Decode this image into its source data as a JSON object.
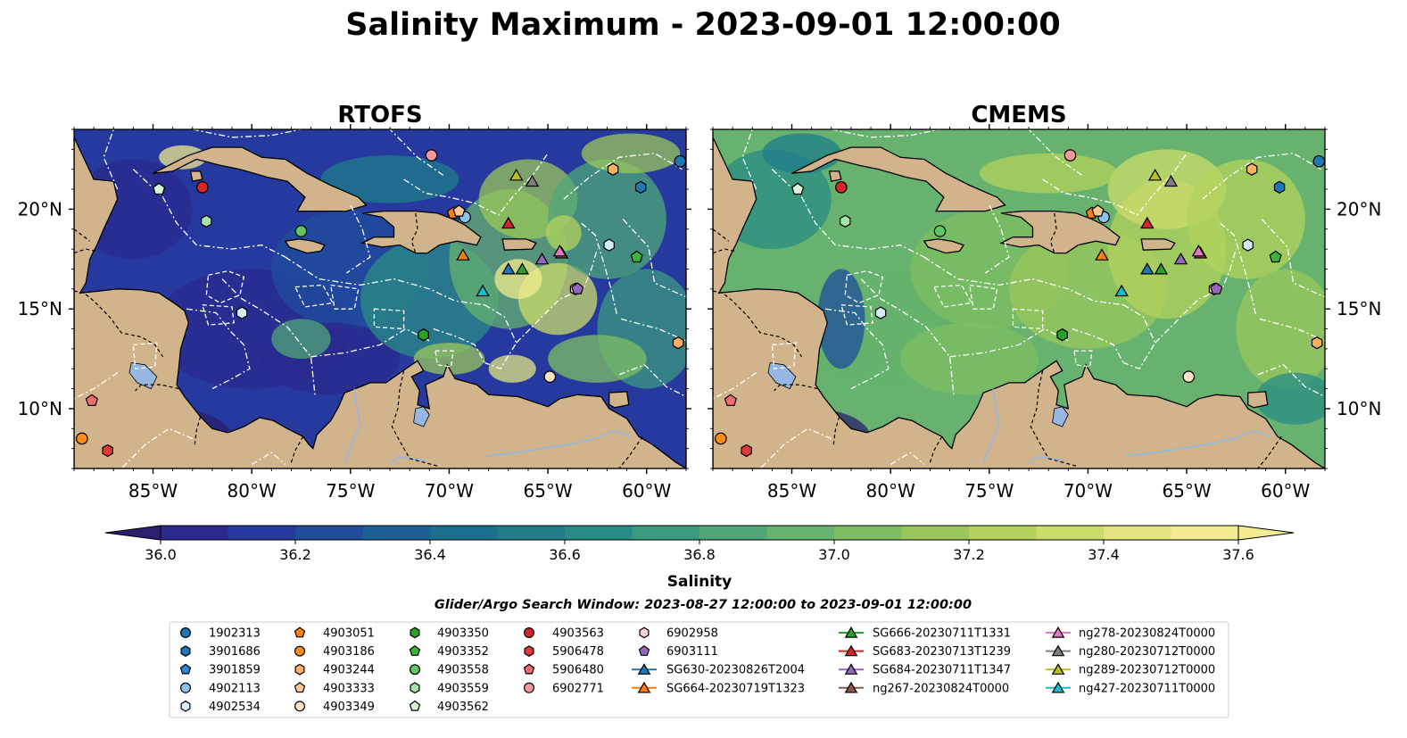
{
  "title": "Salinity Maximum - 2023-09-01 12:00:00",
  "panels": [
    {
      "name": "RTOFS",
      "variant": "rtofs"
    },
    {
      "name": "CMEMS",
      "variant": "cmems"
    }
  ],
  "axes": {
    "lon_range": [
      -89,
      -58
    ],
    "lat_range": [
      7,
      24
    ],
    "x_ticks": [
      "85°W",
      "80°W",
      "75°W",
      "70°W",
      "65°W",
      "60°W"
    ],
    "x_tick_values": [
      -85,
      -80,
      -75,
      -70,
      -65,
      -60
    ],
    "y_ticks": [
      "10°N",
      "15°N",
      "20°N"
    ],
    "y_tick_values": [
      10,
      15,
      20
    ]
  },
  "colorbar": {
    "label": "Salinity",
    "min": 36.0,
    "max": 37.6,
    "step": 0.1,
    "ticks": [
      "36.0",
      "36.2",
      "36.4",
      "36.6",
      "36.8",
      "37.0",
      "37.2",
      "37.4",
      "37.6"
    ],
    "colormap": "summer-ocean",
    "extend": "both"
  },
  "search_window": "Glider/Argo Search Window: 2023-08-27 12:00:00 to 2023-09-01 12:00:00",
  "colors": {
    "land": "#d2b48c",
    "lakes": "#97b6e1",
    "eez_lines": "#ffffff",
    "border_lines": "#000000"
  },
  "legend": [
    {
      "label": "1902313",
      "marker": "circle",
      "color": "#1f77b4"
    },
    {
      "label": "3901686",
      "marker": "hexagon",
      "color": "#1f77b4"
    },
    {
      "label": "3901859",
      "marker": "pentagon",
      "color": "#2e86d6"
    },
    {
      "label": "4902113",
      "marker": "circle",
      "color": "#8ec0ee"
    },
    {
      "label": "4902534",
      "marker": "hexagon",
      "color": "#d6ecfb"
    },
    {
      "label": "4903051",
      "marker": "pentagon",
      "color": "#ff7f0e"
    },
    {
      "label": "4903186",
      "marker": "circle",
      "color": "#ff8c1a"
    },
    {
      "label": "4903244",
      "marker": "hexagon",
      "color": "#ffae66"
    },
    {
      "label": "4903333",
      "marker": "pentagon",
      "color": "#ffc895"
    },
    {
      "label": "4903349",
      "marker": "circle",
      "color": "#ffe2c6"
    },
    {
      "label": "4903350",
      "marker": "hexagon",
      "color": "#2ca02c"
    },
    {
      "label": "4903352",
      "marker": "pentagon",
      "color": "#3cb33c"
    },
    {
      "label": "4903558",
      "marker": "circle",
      "color": "#62c462"
    },
    {
      "label": "4903559",
      "marker": "hexagon",
      "color": "#a6e3a6"
    },
    {
      "label": "4903562",
      "marker": "pentagon",
      "color": "#d6f5d6"
    },
    {
      "label": "4903563",
      "marker": "circle",
      "color": "#d62728"
    },
    {
      "label": "5906478",
      "marker": "hexagon",
      "color": "#e0393a"
    },
    {
      "label": "5906480",
      "marker": "pentagon",
      "color": "#ef6b6c"
    },
    {
      "label": "6902771",
      "marker": "circle",
      "color": "#f49a9a"
    },
    {
      "label": "6902958",
      "marker": "hexagon",
      "color": "#fbd0d0"
    },
    {
      "label": "6903111",
      "marker": "pentagon",
      "color": "#9467bd"
    },
    {
      "label": "SG630-20230826T2004",
      "marker": "triangle-line",
      "color": "#1f77b4"
    },
    {
      "label": "SG664-20230719T1323",
      "marker": "triangle-line",
      "color": "#ff7f0e"
    },
    {
      "label": "SG666-20230711T1331",
      "marker": "triangle-line",
      "color": "#2ca02c"
    },
    {
      "label": "SG683-20230713T1239",
      "marker": "triangle-line",
      "color": "#d62728"
    },
    {
      "label": "SG684-20230711T1347",
      "marker": "triangle-line",
      "color": "#9467bd"
    },
    {
      "label": "ng267-20230824T0000",
      "marker": "triangle-line",
      "color": "#8c564b"
    },
    {
      "label": "ng278-20230824T0000",
      "marker": "triangle-line",
      "color": "#e377c2"
    },
    {
      "label": "ng280-20230712T0000",
      "marker": "triangle-line",
      "color": "#7f7f7f"
    },
    {
      "label": "ng289-20230712T0000",
      "marker": "triangle-line",
      "color": "#bcbd22"
    },
    {
      "label": "ng427-20230711T0000",
      "marker": "triangle-line",
      "color": "#17becf"
    }
  ],
  "platform_positions": [
    {
      "id": "1902313",
      "lon": -58.3,
      "lat": 22.4
    },
    {
      "id": "3901686",
      "lon": -60.3,
      "lat": 21.1
    },
    {
      "id": "3901859",
      "lon": -84.7,
      "lat": 21.0
    },
    {
      "id": "4902113",
      "lon": -69.2,
      "lat": 19.6
    },
    {
      "id": "4902534",
      "lon": -61.9,
      "lat": 18.2
    },
    {
      "id": "4902534",
      "lon": -80.5,
      "lat": 14.8
    },
    {
      "id": "4903051",
      "lon": -69.8,
      "lat": 19.8
    },
    {
      "id": "4903186",
      "lon": -88.6,
      "lat": 8.5
    },
    {
      "id": "4903244",
      "lon": -61.7,
      "lat": 22.0
    },
    {
      "id": "4903244",
      "lon": -58.4,
      "lat": 13.3
    },
    {
      "id": "4903333",
      "lon": -69.5,
      "lat": 19.9
    },
    {
      "id": "4903349",
      "lon": -64.9,
      "lat": 11.6
    },
    {
      "id": "4903350",
      "lon": -71.3,
      "lat": 13.7
    },
    {
      "id": "4903352",
      "lon": -60.5,
      "lat": 17.6
    },
    {
      "id": "4903558",
      "lon": -77.5,
      "lat": 18.9
    },
    {
      "id": "4903559",
      "lon": -82.3,
      "lat": 19.4
    },
    {
      "id": "4903562",
      "lon": -84.7,
      "lat": 21.0
    },
    {
      "id": "4903563",
      "lon": -82.5,
      "lat": 21.1
    },
    {
      "id": "5906478",
      "lon": -87.3,
      "lat": 7.9
    },
    {
      "id": "5906480",
      "lon": -88.1,
      "lat": 10.4
    },
    {
      "id": "6902771",
      "lon": -70.9,
      "lat": 22.7
    },
    {
      "id": "6902958",
      "lon": -63.6,
      "lat": 16.0
    },
    {
      "id": "6903111",
      "lon": -63.5,
      "lat": 16.0
    },
    {
      "id": "SG630-20230826T2004",
      "lon": -67.0,
      "lat": 17.0
    },
    {
      "id": "SG664-20230719T1323",
      "lon": -69.3,
      "lat": 17.7
    },
    {
      "id": "SG666-20230711T1331",
      "lon": -66.3,
      "lat": 17.0
    },
    {
      "id": "SG683-20230713T1239",
      "lon": -67.0,
      "lat": 19.3
    },
    {
      "id": "SG684-20230711T1347",
      "lon": -65.3,
      "lat": 17.5
    },
    {
      "id": "ng267-20230824T0000",
      "lon": -64.3,
      "lat": 17.8
    },
    {
      "id": "ng278-20230824T0000",
      "lon": -64.4,
      "lat": 17.9
    },
    {
      "id": "ng280-20230712T0000",
      "lon": -65.8,
      "lat": 21.4
    },
    {
      "id": "ng289-20230712T0000",
      "lon": -66.6,
      "lat": 21.7
    },
    {
      "id": "ng427-20230711T0000",
      "lon": -68.3,
      "lat": 15.9
    }
  ]
}
